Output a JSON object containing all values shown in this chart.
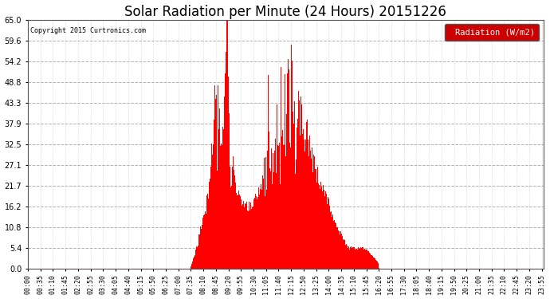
{
  "title": "Solar Radiation per Minute (24 Hours) 20151226",
  "copyright_text": "Copyright 2015 Curtronics.com",
  "legend_label": "Radiation (W/m2)",
  "bar_color": "#ff0000",
  "background_color": "#ffffff",
  "plot_bg_color": "#ffffff",
  "grid_color": "#aaaaaa",
  "legend_bg": "#cc0000",
  "legend_fg": "#ffffff",
  "y_ticks": [
    0.0,
    5.4,
    10.8,
    16.2,
    21.7,
    27.1,
    32.5,
    37.9,
    43.3,
    48.8,
    54.2,
    59.6,
    65.0
  ],
  "ylim": [
    0,
    65.0
  ],
  "title_fontsize": 12,
  "axis_fontsize": 7,
  "dpi": 100,
  "sunrise_min": 455,
  "sunset_min": 981
}
